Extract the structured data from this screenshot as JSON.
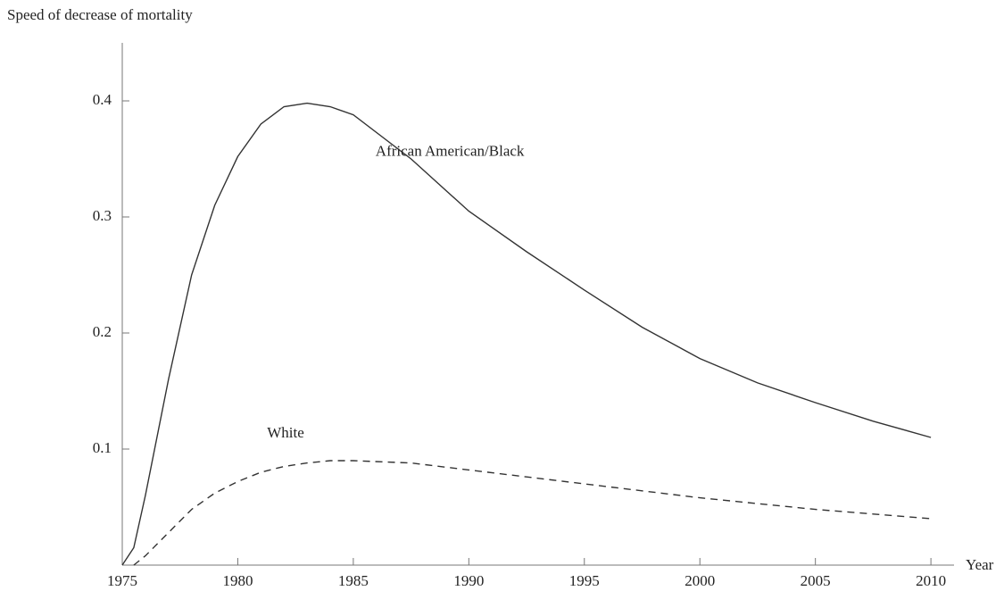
{
  "chart_data": {
    "type": "line",
    "y_label": "Speed of decrease of mortality",
    "x_label": "Year",
    "x": [
      1975,
      1975.5,
      1976,
      1977,
      1978,
      1979,
      1980,
      1981,
      1982,
      1983,
      1984,
      1985,
      1987.5,
      1990,
      1992.5,
      1995,
      1997.5,
      2000,
      2002.5,
      2005,
      2007.5,
      2010
    ],
    "series": [
      {
        "name": "African American/Black",
        "color": "#333333",
        "dash": "none",
        "values": [
          0,
          0.015,
          0.06,
          0.16,
          0.25,
          0.31,
          0.352,
          0.38,
          0.395,
          0.398,
          0.395,
          0.388,
          0.35,
          0.305,
          0.27,
          0.237,
          0.205,
          0.178,
          0.157,
          0.14,
          0.124,
          0.11
        ]
      },
      {
        "name": "White",
        "color": "#333333",
        "dash": "8 6",
        "values": [
          null,
          0,
          0.008,
          0.028,
          0.048,
          0.062,
          0.072,
          0.08,
          0.085,
          0.088,
          0.09,
          0.09,
          0.088,
          0.082,
          0.076,
          0.07,
          0.064,
          0.058,
          0.053,
          0.048,
          0.044,
          0.04
        ]
      }
    ],
    "xlim": [
      1975,
      2011
    ],
    "xticks": [
      1975,
      1980,
      1985,
      1990,
      1995,
      2000,
      2005,
      2010
    ],
    "ylim": [
      0,
      0.45
    ],
    "yticks": [
      0.1,
      0.2,
      0.3,
      0.4
    ]
  }
}
